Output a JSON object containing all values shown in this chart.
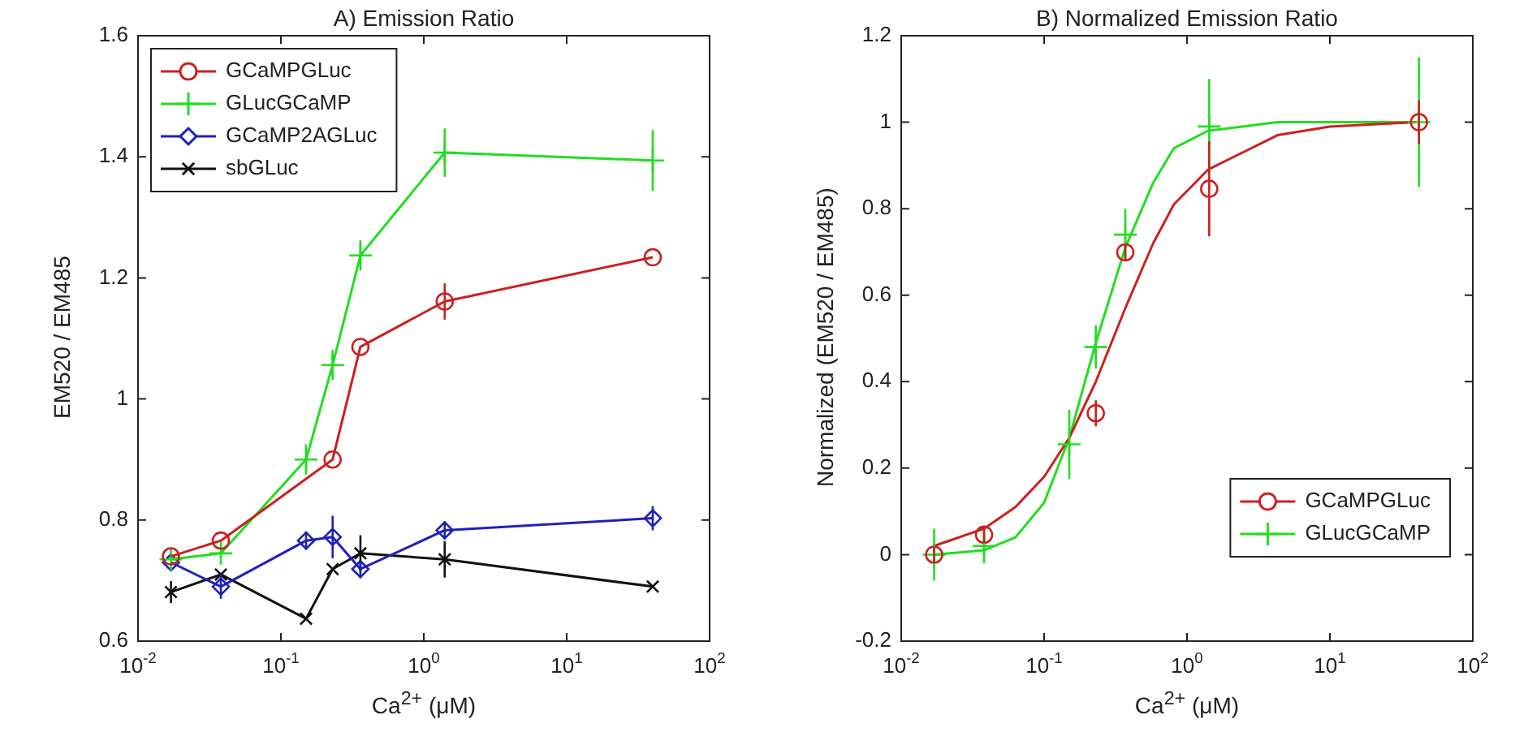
{
  "chart_data": [
    {
      "type": "line",
      "title": "A) Emission Ratio",
      "xlabel": "Ca$^{2+}$ (μM)",
      "ylabel": "EM520 / EM485",
      "log": "x",
      "legend": "top left",
      "xlim": [
        0.01,
        100
      ],
      "xticks": [
        {
          "value": 0.01,
          "label": "10$^{-2}$"
        },
        {
          "value": 0.1,
          "label": "10$^{-1}$"
        },
        {
          "value": 1,
          "label": "10$^{0}$"
        },
        {
          "value": 10,
          "label": "10$^{1}$"
        },
        {
          "value": 100,
          "label": "10$^{2}$"
        }
      ],
      "ylim": [
        0.6,
        1.6
      ],
      "yticks": [
        0.6,
        0.8,
        1,
        1.2,
        1.4,
        1.6
      ],
      "series": [
        {
          "name": "GCaMPGLuc",
          "color": "#cc2020",
          "marker": "circle",
          "x": [
            0.017,
            0.038,
            0.23,
            0.36,
            1.4,
            40
          ],
          "values": [
            0.74,
            0.766,
            0.9,
            1.086,
            1.161,
            1.234
          ],
          "errors": [
            null,
            null,
            null,
            null,
            0.03,
            null
          ]
        },
        {
          "name": "GLucGCaMP",
          "color": "#22dd22",
          "marker": "plus",
          "x": [
            0.017,
            0.038,
            0.15,
            0.23,
            0.36,
            1.4,
            40
          ],
          "values": [
            0.735,
            0.745,
            0.9,
            1.056,
            1.237,
            1.407,
            1.394
          ],
          "errors": [
            null,
            null,
            0.025,
            0.025,
            0.025,
            0.04,
            0.05
          ]
        },
        {
          "name": "GCaMP2AGLuc",
          "color": "#2020bb",
          "marker": "diamond",
          "x": [
            0.017,
            0.038,
            0.15,
            0.23,
            0.36,
            1.4,
            40
          ],
          "values": [
            0.73,
            0.69,
            0.766,
            0.772,
            0.719,
            0.783,
            0.803
          ],
          "errors": [
            null,
            0.02,
            0.015,
            0.035,
            0.015,
            0.015,
            0.02
          ]
        },
        {
          "name": "sbGLuc",
          "color": "#111111",
          "marker": "cross",
          "x": [
            0.017,
            0.038,
            0.15,
            0.23,
            0.36,
            1.4,
            40
          ],
          "values": [
            0.681,
            0.71,
            0.637,
            0.719,
            0.745,
            0.735,
            0.69
          ],
          "errors": [
            0.018,
            null,
            null,
            null,
            0.03,
            0.03,
            null
          ]
        }
      ]
    },
    {
      "type": "line",
      "title": "B) Normalized Emission Ratio",
      "xlabel": "Ca$^{2+}$ (μM)",
      "ylabel": "Normalized (EM520 / EM485)",
      "log": "x",
      "legend": "bottom right",
      "xlim": [
        0.01,
        100
      ],
      "xticks": [
        {
          "value": 0.01,
          "label": "10$^{-2}$"
        },
        {
          "value": 0.1,
          "label": "10$^{-1}$"
        },
        {
          "value": 1,
          "label": "10$^{0}$"
        },
        {
          "value": 10,
          "label": "10$^{1}$"
        },
        {
          "value": 100,
          "label": "10$^{2}$"
        }
      ],
      "ylim": [
        -0.2,
        1.2
      ],
      "yticks": [
        -0.2,
        0,
        0.2,
        0.4,
        0.6,
        0.8,
        1,
        1.2
      ],
      "series": [
        {
          "name": "GCaMPGLuc",
          "color": "#cc2020",
          "type": "scatter",
          "marker": "circle",
          "x": [
            0.017,
            0.038,
            0.23,
            0.37,
            1.43,
            42
          ],
          "values": [
            0,
            0.046,
            0.327,
            0.699,
            0.846,
            1.0
          ],
          "errors": [
            0.02,
            0.02,
            0.03,
            0.02,
            0.11,
            0.05
          ]
        },
        {
          "name": "GLucGCaMP",
          "color": "#22dd22",
          "type": "scatter",
          "marker": "plus",
          "x": [
            0.017,
            0.038,
            0.15,
            0.23,
            0.37,
            1.43,
            42
          ],
          "values": [
            0,
            0.02,
            0.255,
            0.48,
            0.74,
            0.99,
            1.0
          ],
          "errors": [
            0.06,
            0.04,
            0.08,
            0.05,
            0.06,
            0.11,
            0.15
          ]
        },
        {
          "color": "#cc2020",
          "marker": "none",
          "x": [
            0.017,
            0.038,
            0.063,
            0.1,
            0.15,
            0.23,
            0.37,
            0.58,
            0.81,
            1.4,
            4.3,
            10,
            40
          ],
          "values": [
            0.02,
            0.06,
            0.11,
            0.18,
            0.27,
            0.4,
            0.57,
            0.72,
            0.81,
            0.89,
            0.97,
            0.99,
            1.0
          ]
        },
        {
          "color": "#22dd22",
          "marker": "none",
          "x": [
            0.017,
            0.038,
            0.063,
            0.1,
            0.15,
            0.23,
            0.37,
            0.58,
            0.81,
            1.4,
            4.3,
            40
          ],
          "values": [
            0,
            0.01,
            0.04,
            0.12,
            0.27,
            0.49,
            0.71,
            0.86,
            0.94,
            0.98,
            1.0,
            1.0
          ]
        }
      ]
    }
  ]
}
